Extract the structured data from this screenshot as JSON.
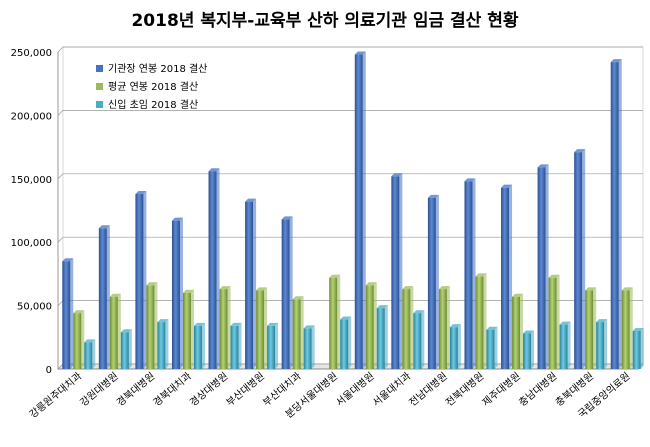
{
  "chart_data": {
    "type": "bar",
    "title": "2018년 복지부-교육부 산하 의료기관 임금 결산 현황",
    "xlabel": "",
    "ylabel": "",
    "ylim": [
      0,
      250000
    ],
    "yticks": [
      "0",
      "50,000",
      "100,000",
      "150,000",
      "200,000",
      "250,000"
    ],
    "grid": true,
    "legend_position": "top-left",
    "categories": [
      "강릉원주대치과",
      "강원대병원",
      "경북대병원",
      "경북대치과",
      "경상대병원",
      "부산대병원",
      "부산대치과",
      "분당서울대병원",
      "서울대병원",
      "서울대치과",
      "전남대병원",
      "전북대병원",
      "제주대병원",
      "충남대병원",
      "충북대병원",
      "국립중앙의료원"
    ],
    "series": [
      {
        "name": "기관장 연봉 2018 결산",
        "color": "#4472C4",
        "values": [
          85000,
          111000,
          138000,
          117000,
          156000,
          132000,
          118000,
          null,
          248000,
          152000,
          135000,
          148000,
          143000,
          159000,
          171000,
          242000
        ]
      },
      {
        "name": "평균 연봉 2018 결산",
        "color": "#9BBB59",
        "values": [
          44000,
          57000,
          66000,
          60000,
          63000,
          62000,
          55000,
          72000,
          66000,
          63000,
          63000,
          73000,
          57000,
          72000,
          62000,
          62000
        ]
      },
      {
        "name": "신입 초임 2018 결산",
        "color": "#4BACC6",
        "values": [
          21000,
          29000,
          37000,
          34000,
          34000,
          34000,
          32000,
          39000,
          48000,
          44000,
          33000,
          31000,
          28000,
          35000,
          37000,
          30000
        ]
      }
    ]
  }
}
